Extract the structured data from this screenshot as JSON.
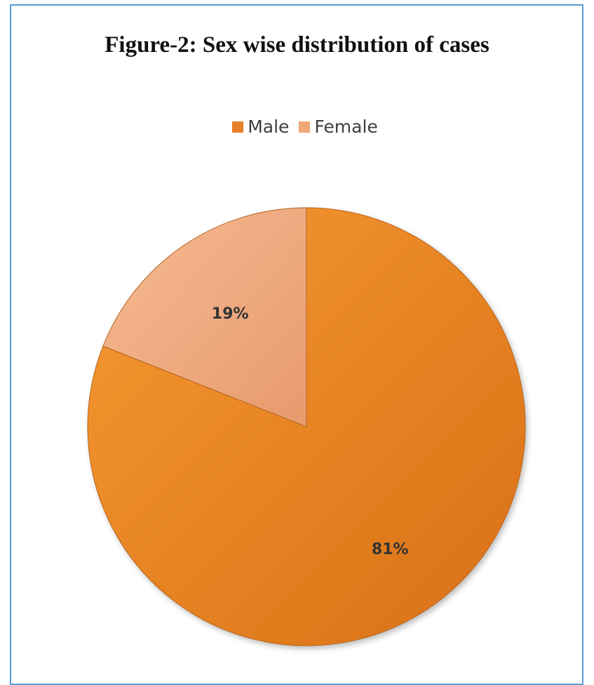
{
  "chart_data": {
    "type": "pie",
    "title": "Figure-2: Sex wise distribution of cases",
    "legend_position": "top",
    "categories": [
      "Male",
      "Female"
    ],
    "values": [
      81,
      19
    ],
    "data_labels": [
      "81%",
      "19%"
    ],
    "colors": {
      "Male": "#e9802a",
      "Female": "#f0a878"
    },
    "start_angle_deg": 0,
    "direction": "clockwise"
  },
  "colors": {
    "frame_border": "#5b9bd5",
    "male_light": "#f3952f",
    "male_dark": "#d96f16",
    "female_light": "#f4b48c",
    "female_dark": "#e3956a"
  }
}
